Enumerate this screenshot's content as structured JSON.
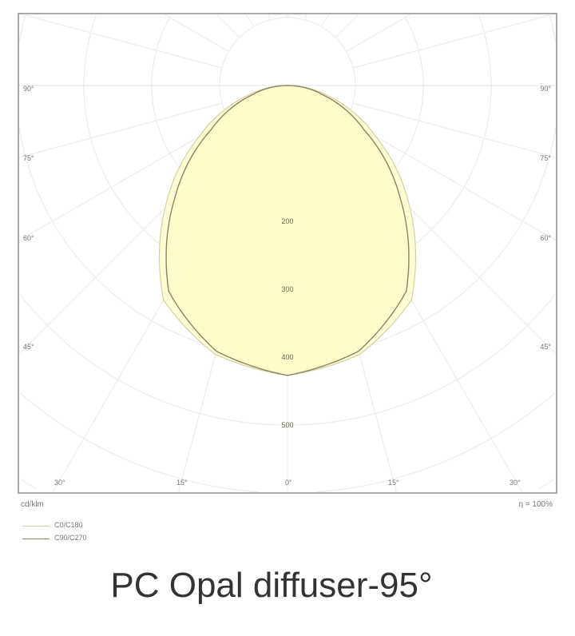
{
  "chart_data": {
    "type": "polar",
    "unit_label": "cd/klm",
    "efficiency_label": "η = 100%",
    "radial_ticks": [
      200,
      300,
      400,
      500
    ],
    "angle_labels_bottom": [
      "30°",
      "15°",
      "0°",
      "15°",
      "30°"
    ],
    "angle_labels_side": [
      "90°",
      "75°",
      "60°",
      "45°"
    ],
    "angles_deg": [
      0,
      15,
      30,
      45,
      60,
      75,
      90
    ],
    "series": [
      {
        "name": "C0/C180",
        "values": [
          427,
          410,
          365,
          255,
          150,
          65,
          0
        ],
        "color": "#d8cfa0"
      },
      {
        "name": "C90/C270",
        "values": [
          427,
          405,
          350,
          235,
          130,
          55,
          0
        ],
        "color": "#8a8660"
      }
    ],
    "fill_color": "#fdfcc8",
    "grid": true
  },
  "caption": "PC Opal diffuser-95°"
}
